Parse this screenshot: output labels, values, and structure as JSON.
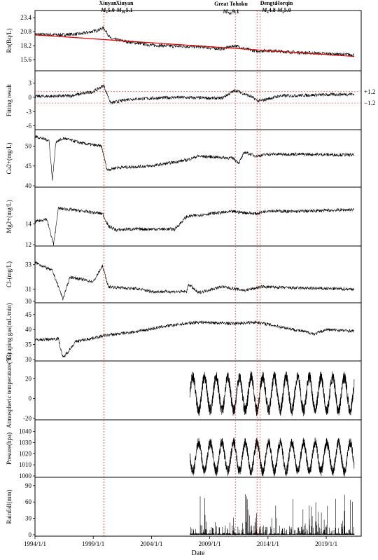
{
  "chart_data": {
    "type": "line",
    "xlabel": "Date",
    "x_ticks": [
      "1994/1/1",
      "1999/1/1",
      "2004/1/1",
      "2009/1/1",
      "2014/1/1",
      "2019/1/1"
    ],
    "x_range": [
      "1994/1/1",
      "2022/1/1"
    ],
    "events": [
      {
        "label": "Xiuyan",
        "mag": "M",
        "sub": "s",
        "value": "5.0",
        "date": "1999/11/29"
      },
      {
        "label": "Xiuyan",
        "mag": "M",
        "sub": "W",
        "value": "5.1",
        "date": "1999/12/01"
      },
      {
        "label": "Great Tohoku",
        "mag": "M",
        "sub": "W",
        "value": "9.1",
        "date": "2011/03/11"
      },
      {
        "label": "Dengta",
        "mag": "M",
        "sub": "s",
        "value": "4.8",
        "date": "2013/01/23"
      },
      {
        "label": "Horqin",
        "mag": "M",
        "sub": "s",
        "value": "5.0",
        "date": "2013/04/22"
      }
    ],
    "panels": [
      {
        "ylabel": "Rn(Bq/L)",
        "ylim": [
          13.8,
          24.2
        ],
        "yticks": [
          "23.4",
          "20.8",
          "18.2",
          "15.6"
        ],
        "series_points": [
          [
            1994.0,
            20.3
          ],
          [
            1996.0,
            20.2
          ],
          [
            1998.0,
            20.4
          ],
          [
            1999.3,
            21.0
          ],
          [
            1999.9,
            21.5
          ],
          [
            2000.5,
            19.5
          ],
          [
            2002.0,
            18.9
          ],
          [
            2004.0,
            18.3
          ],
          [
            2006.0,
            18.1
          ],
          [
            2008.0,
            18.0
          ],
          [
            2010.0,
            17.6
          ],
          [
            2011.2,
            18.2
          ],
          [
            2012.0,
            17.6
          ],
          [
            2013.0,
            17.2
          ],
          [
            2014.0,
            17.3
          ],
          [
            2016.0,
            17.0
          ],
          [
            2018.0,
            16.8
          ],
          [
            2020.0,
            16.6
          ],
          [
            2021.4,
            16.5
          ]
        ],
        "trend": {
          "x": [
            1994.0,
            2021.4
          ],
          "y": [
            20.2,
            16.2
          ]
        }
      },
      {
        "ylabel": "Fitting result",
        "ylim": [
          -6.5,
          5
        ],
        "yticks": [
          "3",
          "0",
          "-3",
          "-6"
        ],
        "refs": [
          {
            "value": 1.2,
            "label": "+1.2"
          },
          {
            "value": -1.2,
            "label": "−1.2"
          }
        ],
        "series_points": [
          [
            1994.0,
            0.2
          ],
          [
            1997.0,
            0.3
          ],
          [
            1999.0,
            1.2
          ],
          [
            1999.9,
            2.5
          ],
          [
            2000.5,
            -1.2
          ],
          [
            2002.0,
            -0.4
          ],
          [
            2006.0,
            0.0
          ],
          [
            2010.0,
            -0.2
          ],
          [
            2011.2,
            1.5
          ],
          [
            2012.5,
            0.2
          ],
          [
            2013.2,
            -0.8
          ],
          [
            2015.0,
            0.3
          ],
          [
            2021.4,
            0.7
          ]
        ]
      },
      {
        "ylabel": "Ca2+(mg/L)",
        "ylim": [
          40,
          53.5
        ],
        "yticks": [
          "50",
          "45",
          "40"
        ],
        "series_points": [
          [
            1994.0,
            52.5
          ],
          [
            1995.2,
            51.5
          ],
          [
            1995.5,
            41.5
          ],
          [
            1995.8,
            51.2
          ],
          [
            1996.5,
            52.0
          ],
          [
            1998.0,
            50.8
          ],
          [
            1999.7,
            50.0
          ],
          [
            2000.2,
            44.0
          ],
          [
            2001.0,
            44.6
          ],
          [
            2004.0,
            45.0
          ],
          [
            2007.0,
            46.5
          ],
          [
            2008.0,
            47.5
          ],
          [
            2011.0,
            47.0
          ],
          [
            2011.5,
            45.8
          ],
          [
            2012.0,
            48.5
          ],
          [
            2013.0,
            47.5
          ],
          [
            2014.0,
            48.0
          ],
          [
            2016.0,
            48.0
          ],
          [
            2021.4,
            47.8
          ]
        ]
      },
      {
        "ylabel": "Mg2+(mg/L)",
        "ylim": [
          12,
          17.3
        ],
        "yticks": [
          "14",
          "12"
        ],
        "series_points": [
          [
            1994.0,
            14.2
          ],
          [
            1995.0,
            14.5
          ],
          [
            1995.6,
            12.0
          ],
          [
            1996.0,
            15.5
          ],
          [
            1997.0,
            15.4
          ],
          [
            1999.8,
            15.0
          ],
          [
            2000.3,
            13.8
          ],
          [
            2001.0,
            13.4
          ],
          [
            2002.0,
            13.5
          ],
          [
            2006.0,
            13.5
          ],
          [
            2007.0,
            14.7
          ],
          [
            2009.0,
            15.0
          ],
          [
            2011.0,
            15.2
          ],
          [
            2013.0,
            15.0
          ],
          [
            2014.0,
            15.3
          ],
          [
            2016.0,
            15.2
          ],
          [
            2021.4,
            15.4
          ]
        ]
      },
      {
        "ylabel": "Cl-(mg/L)",
        "ylim": [
          30,
          34.3
        ],
        "yticks": [
          "33",
          "31",
          "30"
        ],
        "series_points": [
          [
            1994.0,
            33.2
          ],
          [
            1995.5,
            32.5
          ],
          [
            1996.4,
            30.2
          ],
          [
            1997.0,
            32.0
          ],
          [
            1998.0,
            31.8
          ],
          [
            1999.0,
            31.6
          ],
          [
            1999.8,
            32.9
          ],
          [
            2000.3,
            31.2
          ],
          [
            2003.0,
            31.0
          ],
          [
            2004.0,
            30.8
          ],
          [
            2007.0,
            30.8
          ],
          [
            2007.2,
            31.4
          ],
          [
            2008.0,
            30.7
          ],
          [
            2010.0,
            31.2
          ],
          [
            2012.0,
            30.9
          ],
          [
            2013.5,
            31.2
          ],
          [
            2016.0,
            31.1
          ],
          [
            2021.4,
            31.0
          ]
        ]
      },
      {
        "ylabel": "Escaping gas(mL/min)",
        "ylim": [
          30,
          48
        ],
        "yticks": [
          "45",
          "40",
          "35",
          "30"
        ],
        "series_points": [
          [
            1994.0,
            36.5
          ],
          [
            1996.0,
            37.0
          ],
          [
            1996.4,
            30.5
          ],
          [
            1997.5,
            36.0
          ],
          [
            2000.0,
            38.0
          ],
          [
            2003.0,
            39.5
          ],
          [
            2005.0,
            41.0
          ],
          [
            2008.0,
            42.5
          ],
          [
            2011.0,
            42.0
          ],
          [
            2013.0,
            42.5
          ],
          [
            2015.0,
            41.0
          ],
          [
            2017.5,
            39.0
          ],
          [
            2018.0,
            38.5
          ],
          [
            2019.0,
            40.0
          ],
          [
            2021.4,
            39.5
          ]
        ]
      },
      {
        "ylabel": "Atmospheric temperature(℃)",
        "ylim": [
          -20,
          35
        ],
        "yticks": [
          "20",
          "0",
          "-20"
        ],
        "start": 2007.3,
        "cycle": {
          "mean": 5,
          "amp": 17,
          "type": "seasonal"
        }
      },
      {
        "ylabel": "Presure(hpa)",
        "ylim": [
          1000,
          1048
        ],
        "yticks": [
          "1040",
          "1030",
          "1020",
          "1010",
          "1000"
        ],
        "start": 2007.3,
        "cycle": {
          "mean": 1017,
          "amp": 13,
          "type": "seasonal_inverse"
        }
      },
      {
        "ylabel": "Rainfall(mm)",
        "ylim": [
          0,
          100
        ],
        "yticks": [
          "90",
          "60",
          "30",
          "0"
        ],
        "start": 2007.3,
        "cycle": {
          "type": "spikes"
        }
      }
    ]
  }
}
